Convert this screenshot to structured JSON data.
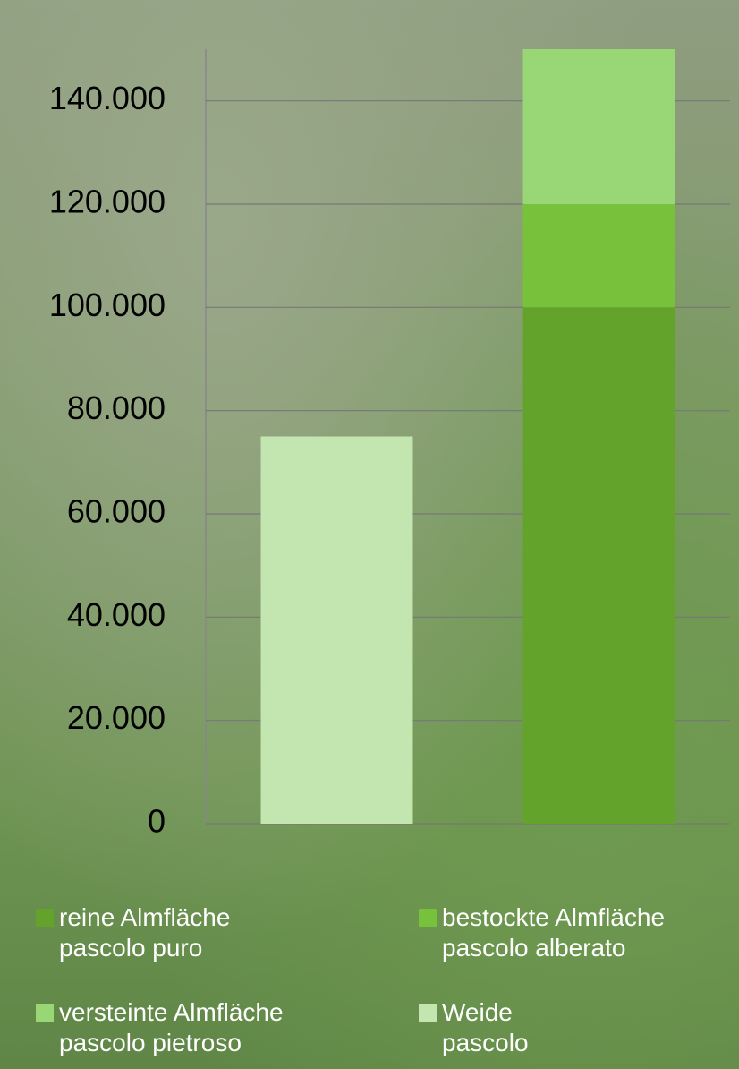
{
  "chart_data": {
    "type": "stacked-bar",
    "categories": [
      null,
      null
    ],
    "series": [
      {
        "name": "reine Almfläche\npascolo puro",
        "color": "#63a32c",
        "values": [
          null,
          100000
        ]
      },
      {
        "name": "bestockte Almfläche\npascolo alberato",
        "color": "#77c23a",
        "values": [
          null,
          20000
        ]
      },
      {
        "name": "versteinte Almfläche\npascolo pietroso",
        "color": "#99d676",
        "values": [
          null,
          30000
        ]
      },
      {
        "name": "Weide\npascolo",
        "color": "#c3e6b0",
        "values": [
          75000,
          null
        ]
      }
    ],
    "ylim": [
      0,
      150000
    ],
    "yticks": [
      0,
      {
        "value": 20000,
        "label": "20.000"
      },
      {
        "value": 40000,
        "label": "40.000"
      },
      {
        "value": 60000,
        "label": "60.000"
      },
      {
        "value": 80000,
        "label": "80.000"
      },
      {
        "value": 100000,
        "label": "100.000"
      },
      {
        "value": 120000,
        "label": "120.000"
      },
      {
        "value": 140000,
        "label": "140.000"
      }
    ],
    "grid": true
  }
}
